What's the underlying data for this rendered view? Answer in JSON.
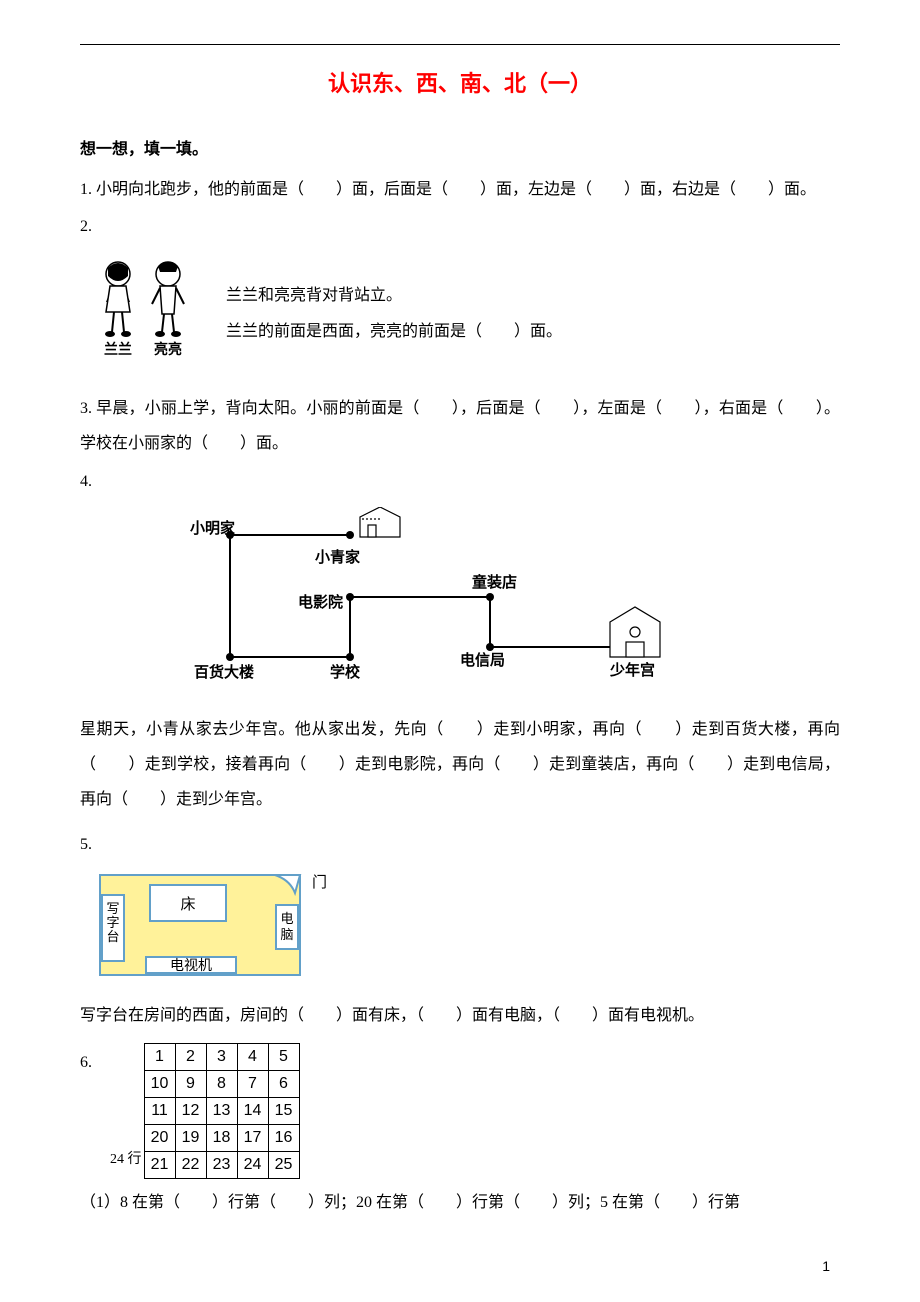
{
  "title": "认识东、西、南、北（一）",
  "section_heading": "想一想，填一填。",
  "q1": {
    "text": "1. 小明向北跑步，他的前面是（　　）面，后面是（　　）面，左边是（　　）面，右边是（　　）面。"
  },
  "q2": {
    "label": "2.",
    "names": {
      "left": "兰兰",
      "right": "亮亮"
    },
    "line1": "兰兰和亮亮背对背站立。",
    "line2": "兰兰的前面是西面，亮亮的前面是（　　）面。"
  },
  "q3": {
    "text": "3. 早晨，小丽上学，背向太阳。小丽的前面是（　　），后面是（　　），左面是（　　），右面是（　　）。学校在小丽家的（　　）面。"
  },
  "q4": {
    "label": "4.",
    "labels": {
      "xiaoming": "小明家",
      "xiaoqing": "小青家",
      "cinema": "电影院",
      "tongzhuang": "童装店",
      "dianxin": "电信局",
      "youth": "少年宫",
      "baihuo": "百货大楼",
      "school": "学校"
    },
    "paragraph": "星期天，小青从家去少年宫。他从家出发，先向（　　）走到小明家，再向（　　）走到百货大楼，再向（　　）走到学校，接着再向（　　）走到电影院，再向（　　）走到童装店，再向（　　）走到电信局，再向（　　）走到少年宫。"
  },
  "q5": {
    "label": "5.",
    "room": {
      "bed": "床",
      "desk": "写字台",
      "tv": "电视机",
      "computer": "电脑",
      "door": "门",
      "bg_color": "#fff29a",
      "border_color": "#62a0c9"
    },
    "text": "写字台在房间的西面，房间的（　　）面有床，（　　）面有电脑，（　　）面有电视机。"
  },
  "q6": {
    "label": "6.",
    "left_note": "24 行",
    "grid": [
      [
        "1",
        "2",
        "3",
        "4",
        "5"
      ],
      [
        "10",
        "9",
        "8",
        "7",
        "6"
      ],
      [
        "11",
        "12",
        "13",
        "14",
        "15"
      ],
      [
        "20",
        "19",
        "18",
        "17",
        "16"
      ],
      [
        "21",
        "22",
        "23",
        "24",
        "25"
      ]
    ],
    "text": "（1）8 在第（　　）行第（　　）列；20 在第（　　）行第（　　）列；5 在第（　　）行第"
  },
  "page_number": "1"
}
